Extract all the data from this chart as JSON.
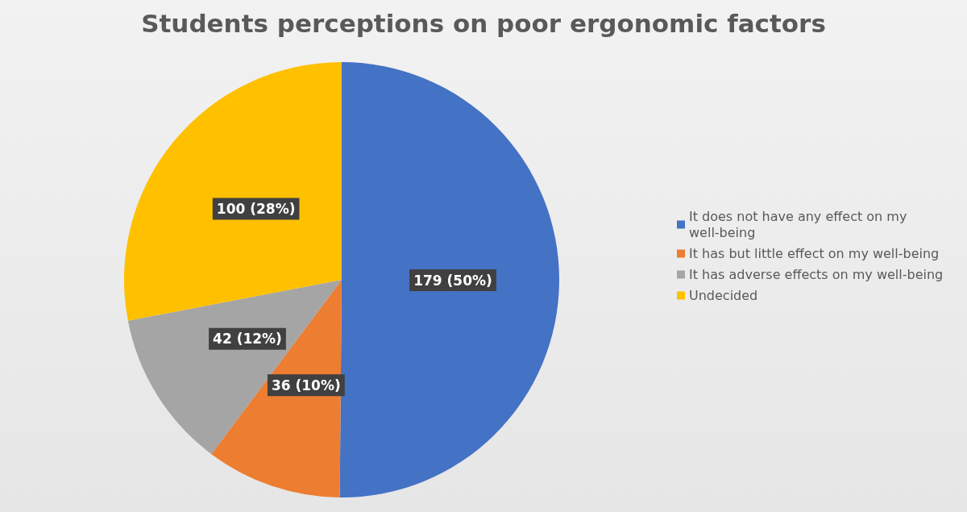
{
  "chart_data": {
    "type": "pie",
    "title": "Students perceptions on poor ergonomic factors",
    "categories": [
      "It does not have any effect on my well-being",
      "It has but little effect on my well-being",
      "It has adverse effects on my well-being",
      "Undecided"
    ],
    "values": [
      179,
      36,
      42,
      100
    ],
    "colors": [
      "#4472c4",
      "#ed7d31",
      "#a5a5a5",
      "#ffc000"
    ],
    "value_labels": [
      "179 (50%)",
      "36 (10%)",
      "42 (12%)",
      "100 (28%)"
    ],
    "legend": "right"
  }
}
